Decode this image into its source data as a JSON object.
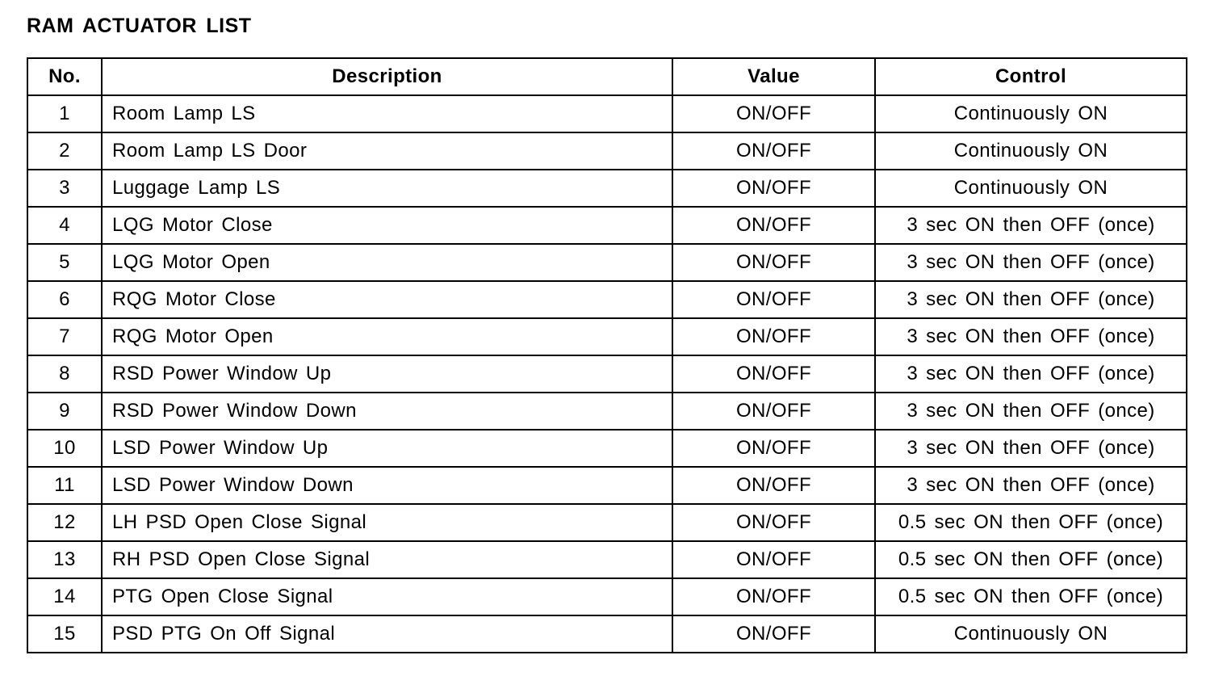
{
  "title": "RAM ACTUATOR LIST",
  "table": {
    "headers": [
      "No.",
      "Description",
      "Value",
      "Control"
    ],
    "rows": [
      [
        "1",
        "Room Lamp LS",
        "ON/OFF",
        "Continuously ON"
      ],
      [
        "2",
        "Room Lamp LS Door",
        "ON/OFF",
        "Continuously ON"
      ],
      [
        "3",
        "Luggage Lamp LS",
        "ON/OFF",
        "Continuously ON"
      ],
      [
        "4",
        "LQG Motor Close",
        "ON/OFF",
        "3 sec ON then OFF (once)"
      ],
      [
        "5",
        "LQG Motor Open",
        "ON/OFF",
        "3 sec ON then OFF (once)"
      ],
      [
        "6",
        "RQG Motor Close",
        "ON/OFF",
        "3 sec ON then OFF (once)"
      ],
      [
        "7",
        "RQG Motor Open",
        "ON/OFF",
        "3 sec ON then OFF (once)"
      ],
      [
        "8",
        "RSD Power Window Up",
        "ON/OFF",
        "3 sec ON then OFF (once)"
      ],
      [
        "9",
        "RSD Power Window Down",
        "ON/OFF",
        "3 sec ON then OFF (once)"
      ],
      [
        "10",
        "LSD Power Window Up",
        "ON/OFF",
        "3 sec ON then OFF (once)"
      ],
      [
        "11",
        "LSD Power Window Down",
        "ON/OFF",
        "3 sec ON then OFF (once)"
      ],
      [
        "12",
        "LH PSD Open Close Signal",
        "ON/OFF",
        "0.5 sec ON then OFF (once)"
      ],
      [
        "13",
        "RH PSD Open Close Signal",
        "ON/OFF",
        "0.5 sec ON then OFF (once)"
      ],
      [
        "14",
        "PTG Open Close Signal",
        "ON/OFF",
        "0.5 sec ON then OFF (once)"
      ],
      [
        "15",
        "PSD PTG On Off Signal",
        "ON/OFF",
        "Continuously ON"
      ]
    ]
  }
}
